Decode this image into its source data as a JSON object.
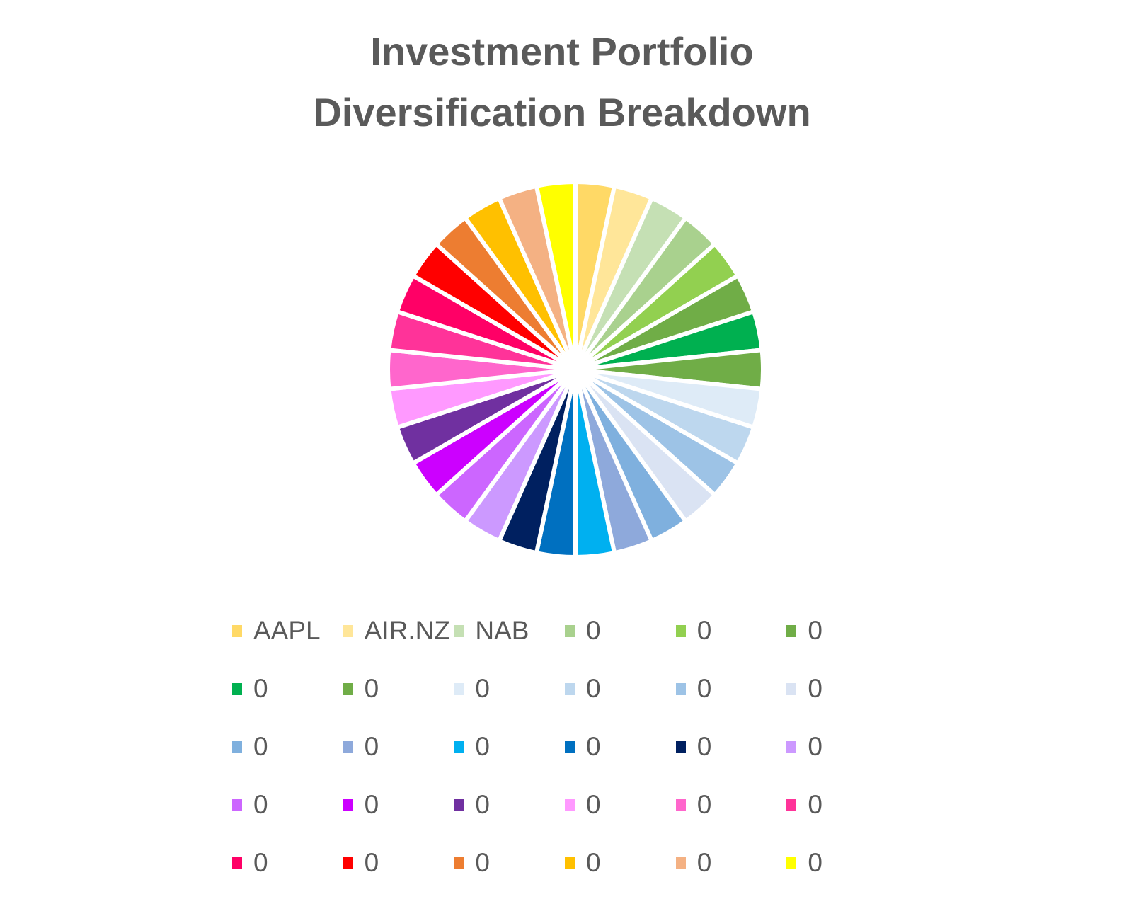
{
  "chart_data": {
    "type": "pie",
    "title": [
      "Investment Portfolio",
      "Diversification Breakdown"
    ],
    "legend_position": "bottom",
    "slices": [
      {
        "label": "AAPL",
        "value": 1,
        "color": "#FFD966"
      },
      {
        "label": "AIR.NZ",
        "value": 1,
        "color": "#FFE699"
      },
      {
        "label": "NAB",
        "value": 1,
        "color": "#C5E0B4"
      },
      {
        "label": "0",
        "value": 1,
        "color": "#A9D18E"
      },
      {
        "label": "0",
        "value": 1,
        "color": "#92D050"
      },
      {
        "label": "0",
        "value": 1,
        "color": "#70AD47"
      },
      {
        "label": "0",
        "value": 1,
        "color": "#00B050"
      },
      {
        "label": "0",
        "value": 1,
        "color": "#70AD47"
      },
      {
        "label": "0",
        "value": 1,
        "color": "#DEEBF7"
      },
      {
        "label": "0",
        "value": 1,
        "color": "#BDD7EE"
      },
      {
        "label": "0",
        "value": 1,
        "color": "#9DC3E6"
      },
      {
        "label": "0",
        "value": 1,
        "color": "#DAE3F3"
      },
      {
        "label": "0",
        "value": 1,
        "color": "#7FB0DE"
      },
      {
        "label": "0",
        "value": 1,
        "color": "#8EA9DB"
      },
      {
        "label": "0",
        "value": 1,
        "color": "#00B0F0"
      },
      {
        "label": "0",
        "value": 1,
        "color": "#0070C0"
      },
      {
        "label": "0",
        "value": 1,
        "color": "#002060"
      },
      {
        "label": "0",
        "value": 1,
        "color": "#CC99FF"
      },
      {
        "label": "0",
        "value": 1,
        "color": "#CC66FF"
      },
      {
        "label": "0",
        "value": 1,
        "color": "#CC00FF"
      },
      {
        "label": "0",
        "value": 1,
        "color": "#7030A0"
      },
      {
        "label": "0",
        "value": 1,
        "color": "#FF99FF"
      },
      {
        "label": "0",
        "value": 1,
        "color": "#FF66CC"
      },
      {
        "label": "0",
        "value": 1,
        "color": "#FF3399"
      },
      {
        "label": "0",
        "value": 1,
        "color": "#FF0066"
      },
      {
        "label": "0",
        "value": 1,
        "color": "#FF0000"
      },
      {
        "label": "0",
        "value": 1,
        "color": "#ED7D31"
      },
      {
        "label": "0",
        "value": 1,
        "color": "#FFC000"
      },
      {
        "label": "0",
        "value": 1,
        "color": "#F4B183"
      },
      {
        "label": "0",
        "value": 1,
        "color": "#FFFF00"
      }
    ]
  }
}
